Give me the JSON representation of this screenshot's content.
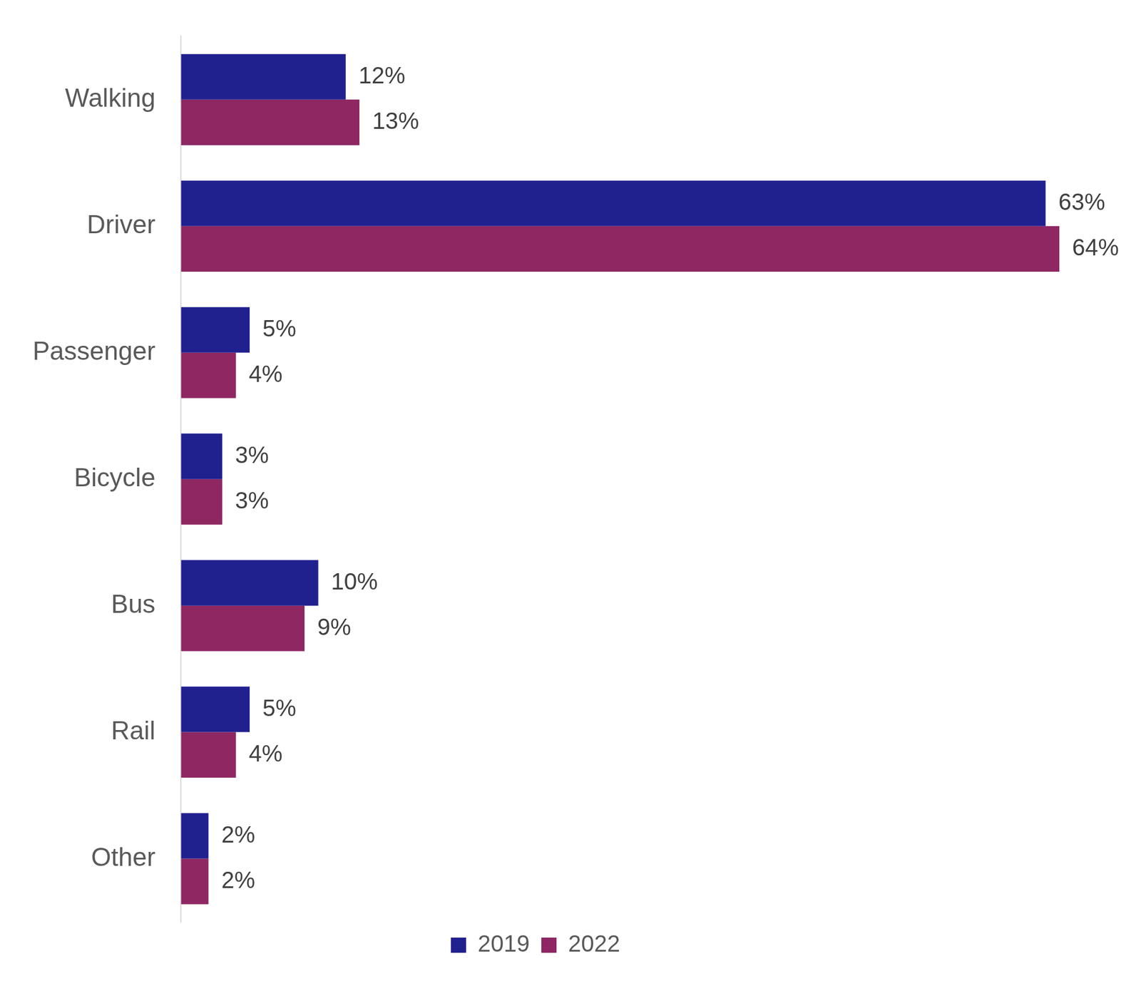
{
  "chart_data": {
    "type": "bar",
    "orientation": "horizontal",
    "categories": [
      "Walking",
      "Driver",
      "Passenger",
      "Bicycle",
      "Bus",
      "Rail",
      "Other"
    ],
    "series": [
      {
        "name": "2019",
        "color": "#21208f",
        "values": [
          12,
          63,
          5,
          3,
          10,
          5,
          2
        ],
        "value_labels": [
          "12%",
          "63%",
          "5%",
          "3%",
          "10%",
          "5%",
          "2%"
        ]
      },
      {
        "name": "2022",
        "color": "#8e2762",
        "values": [
          13,
          64,
          4,
          3,
          9,
          4,
          2
        ],
        "value_labels": [
          "13%",
          "64%",
          "4%",
          "3%",
          "9%",
          "4%",
          "2%"
        ]
      }
    ],
    "xlim": [
      0,
      64
    ],
    "grid": false,
    "legend": "bottom",
    "data_labels": true,
    "tick_labels": "y"
  }
}
